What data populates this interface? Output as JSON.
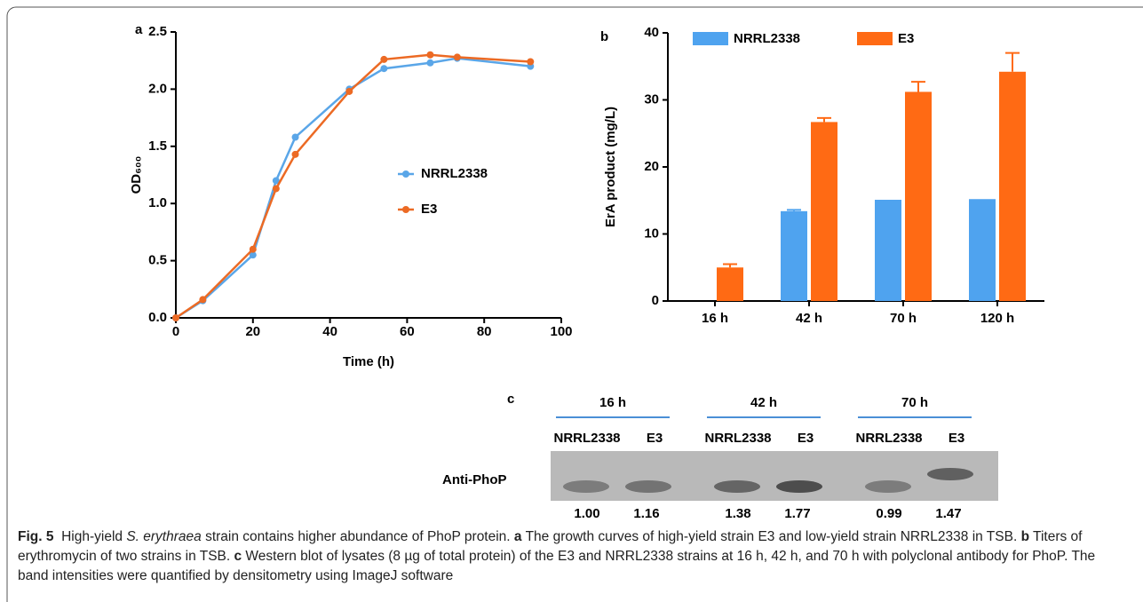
{
  "chart_data": [
    {
      "type": "line",
      "panel_label": "a",
      "x_label": "Time (h)",
      "y_label": "OD₆₀₀",
      "x": [
        0,
        7,
        20,
        26,
        31,
        45,
        54,
        66,
        73,
        92
      ],
      "series": [
        {
          "name": "NRRL2338",
          "color": "#5aa6e8",
          "values": [
            0,
            0.15,
            0.55,
            1.2,
            1.58,
            2.0,
            2.18,
            2.23,
            2.27,
            2.2
          ]
        },
        {
          "name": "E3",
          "color": "#ec6a24",
          "values": [
            0,
            0.16,
            0.6,
            1.13,
            1.43,
            1.98,
            2.26,
            2.3,
            2.28,
            2.24
          ]
        }
      ],
      "xlim": [
        0,
        100
      ],
      "xticks": [
        0,
        20,
        40,
        60,
        80,
        100
      ],
      "ylim": [
        0,
        2.5
      ],
      "yticks": [
        {
          "value": 0,
          "label": "0.0"
        },
        0.5,
        {
          "value": 1,
          "label": "1.0"
        },
        1.5,
        {
          "value": 2,
          "label": "2.0"
        },
        2.5
      ],
      "legend": "right"
    },
    {
      "type": "bar",
      "panel_label": "b",
      "y_label": "ErA product (mg/L)",
      "categories": [
        "16 h",
        "42 h",
        "70 h",
        "120 h"
      ],
      "series": [
        {
          "name": "NRRL2338",
          "color": "#4fa3ef",
          "values": [
            null,
            13.4,
            15.1,
            15.2
          ],
          "errors": [
            null,
            0.2,
            null,
            null
          ]
        },
        {
          "name": "E3",
          "color": "#ff6a14",
          "values": [
            5,
            26.7,
            31.2,
            34.2
          ],
          "errors": [
            0.5,
            0.6,
            1.5,
            2.8
          ]
        }
      ],
      "ylim": [
        0,
        40
      ],
      "yticks": [
        0,
        10,
        20,
        30,
        40
      ],
      "legend": "top"
    }
  ],
  "blot": {
    "panel_label": "c",
    "row_label": "Anti-PhoP",
    "times": [
      "16 h",
      "42 h",
      "70 h"
    ],
    "lanes": [
      "NRRL2338",
      "E3"
    ],
    "values": [
      1.0,
      1.16,
      1.38,
      1.77,
      0.99,
      1.47
    ],
    "value_labels": [
      "1.00",
      "1.16",
      "1.38",
      "1.77",
      "0.99",
      "1.47"
    ]
  },
  "caption": [
    {
      "text": "Fig. 5",
      "style": "bold"
    },
    {
      "text": "  High-yield ",
      "style": "normal"
    },
    {
      "text": "S. erythraea",
      "style": "italic"
    },
    {
      "text": " strain contains higher abundance of PhoP protein. ",
      "style": "normal"
    },
    {
      "text": "a",
      "style": "bold"
    },
    {
      "text": " The growth curves of high-yield strain E3 and low-yield strain NRRL2338 in TSB. ",
      "style": "normal"
    },
    {
      "text": "b",
      "style": "bold"
    },
    {
      "text": " Titers of erythromycin of two strains in TSB. ",
      "style": "normal"
    },
    {
      "text": "c",
      "style": "bold"
    },
    {
      "text": " Western blot of lysates (8 µg of total protein) of the E3 and NRRL2338 strains at 16 h, 42 h, and 70 h with polyclonal antibody for PhoP. The band intensities were quantified by densitometry using ImageJ software",
      "style": "normal"
    }
  ]
}
